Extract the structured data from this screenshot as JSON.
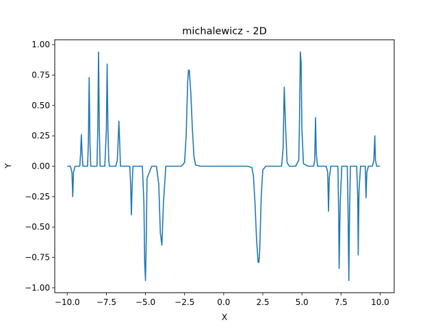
{
  "chart_data": {
    "type": "line",
    "title": "michalewicz - 2D",
    "xlabel": "X",
    "ylabel": "Y",
    "xlim": [
      -10.8,
      10.9
    ],
    "ylim": [
      -1.04,
      1.04
    ],
    "xticks": [
      -10.0,
      -7.5,
      -5.0,
      -2.5,
      0.0,
      2.5,
      5.0,
      7.5,
      10.0
    ],
    "xtick_labels": [
      "−10.0",
      "−7.5",
      "−5.0",
      "−2.5",
      "0.0",
      "2.5",
      "5.0",
      "7.5",
      "10.0"
    ],
    "yticks": [
      -1.0,
      -0.75,
      -0.5,
      -0.25,
      0.0,
      0.25,
      0.5,
      0.75,
      1.0
    ],
    "ytick_labels": [
      "−1.00",
      "−0.75",
      "−0.50",
      "−0.25",
      "0.00",
      "0.25",
      "0.50",
      "0.75",
      "1.00"
    ],
    "grid": false,
    "series": [
      {
        "color": "#1f77b4",
        "x": [
          -10.0,
          -9.8,
          -9.7,
          -9.65,
          -9.6,
          -9.5,
          -9.2,
          -9.15,
          -9.1,
          -9.05,
          -9.0,
          -8.7,
          -8.65,
          -8.6,
          -8.55,
          -8.5,
          -8.3,
          -8.1,
          -8.05,
          -8.0,
          -7.95,
          -7.9,
          -7.6,
          -7.5,
          -7.45,
          -7.4,
          -7.35,
          -7.3,
          -6.9,
          -6.8,
          -6.75,
          -6.7,
          -6.65,
          -6.6,
          -6.3,
          -6.0,
          -5.95,
          -5.9,
          -5.85,
          -5.8,
          -5.5,
          -5.2,
          -5.1,
          -5.05,
          -5.0,
          -4.95,
          -4.9,
          -4.6,
          -4.3,
          -4.15,
          -4.05,
          -3.95,
          -3.85,
          -3.7,
          -3.0,
          -2.7,
          -2.5,
          -2.4,
          -2.3,
          -2.25,
          -2.2,
          -2.1,
          -2.0,
          -1.9,
          -1.8,
          -1.5,
          0.0,
          1.5,
          1.8,
          1.9,
          2.0,
          2.1,
          2.2,
          2.25,
          2.3,
          2.4,
          2.5,
          2.7,
          3.0,
          3.5,
          3.7,
          3.8,
          3.87,
          3.95,
          4.05,
          4.2,
          4.6,
          4.8,
          4.85,
          4.9,
          4.95,
          5.0,
          5.1,
          5.4,
          5.75,
          5.82,
          5.87,
          5.92,
          6.0,
          6.3,
          6.55,
          6.65,
          6.7,
          6.75,
          6.85,
          7.15,
          7.3,
          7.35,
          7.38,
          7.45,
          7.55,
          7.7,
          7.9,
          7.95,
          8.0,
          8.05,
          8.1,
          8.3,
          8.5,
          8.57,
          8.6,
          8.65,
          8.75,
          8.95,
          9.05,
          9.1,
          9.15,
          9.25,
          9.5,
          9.6,
          9.66,
          9.7,
          9.78,
          10.0
        ],
        "y": [
          0.0,
          0.0,
          -0.05,
          -0.25,
          -0.05,
          0.0,
          0.0,
          0.1,
          0.26,
          0.1,
          0.0,
          0.0,
          0.2,
          0.73,
          0.2,
          0.0,
          0.0,
          0.0,
          0.3,
          0.94,
          0.3,
          0.0,
          0.0,
          0.3,
          0.84,
          0.3,
          0.05,
          0.0,
          0.0,
          0.05,
          0.2,
          0.37,
          0.2,
          0.0,
          0.0,
          0.0,
          -0.15,
          -0.4,
          -0.15,
          0.0,
          0.0,
          0.0,
          -0.3,
          -0.8,
          -0.94,
          -0.6,
          -0.1,
          0.0,
          0.0,
          -0.15,
          -0.55,
          -0.65,
          -0.3,
          0.0,
          0.0,
          0.0,
          0.03,
          0.25,
          0.7,
          0.79,
          0.79,
          0.6,
          0.3,
          0.08,
          0.01,
          0.0,
          0.0,
          0.0,
          -0.01,
          -0.08,
          -0.3,
          -0.6,
          -0.79,
          -0.79,
          -0.7,
          -0.25,
          -0.03,
          0.0,
          0.0,
          0.0,
          0.0,
          0.15,
          0.65,
          0.35,
          0.03,
          0.0,
          0.0,
          0.05,
          0.4,
          0.94,
          0.85,
          0.3,
          0.02,
          0.0,
          0.0,
          0.05,
          0.4,
          0.1,
          0.0,
          0.0,
          0.0,
          -0.05,
          -0.37,
          -0.1,
          0.0,
          0.0,
          0.0,
          -0.4,
          -0.84,
          -0.3,
          0.0,
          0.0,
          0.0,
          -0.35,
          -0.94,
          -0.35,
          0.0,
          0.0,
          0.0,
          -0.25,
          -0.73,
          -0.2,
          0.0,
          0.0,
          0.0,
          -0.26,
          -0.05,
          0.0,
          0.0,
          0.05,
          0.25,
          0.05,
          0.0,
          0.0
        ]
      }
    ]
  }
}
